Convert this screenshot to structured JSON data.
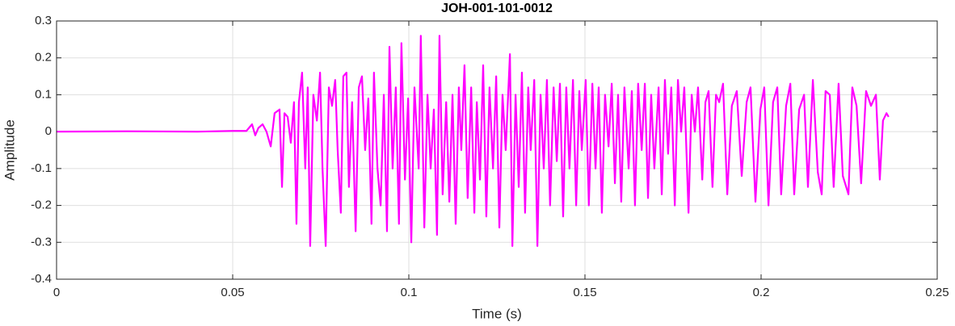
{
  "chart_data": {
    "type": "line",
    "title": "JOH-001-101-0012",
    "xlabel": "Time (s)",
    "ylabel": "Amplitude",
    "xlim": [
      0,
      0.25
    ],
    "ylim": [
      -0.4,
      0.3
    ],
    "xticks": [
      0,
      0.05,
      0.1,
      0.15,
      0.2,
      0.25
    ],
    "yticks": [
      -0.4,
      -0.3,
      -0.2,
      -0.1,
      0,
      0.1,
      0.2,
      0.3
    ],
    "grid": true,
    "series": [
      {
        "color": "#ff00ff",
        "x": [
          0,
          0.02,
          0.04,
          0.05,
          0.0539,
          0.0555,
          0.0564,
          0.0573,
          0.0585,
          0.0596,
          0.0608,
          0.0619,
          0.0633,
          0.064,
          0.0647,
          0.0656,
          0.0665,
          0.0674,
          0.0681,
          0.0688,
          0.0697,
          0.0706,
          0.0713,
          0.072,
          0.0729,
          0.0739,
          0.0748,
          0.0755,
          0.0764,
          0.0773,
          0.0782,
          0.0791,
          0.0798,
          0.0807,
          0.0814,
          0.0823,
          0.083,
          0.0839,
          0.0849,
          0.0858,
          0.0867,
          0.0876,
          0.0885,
          0.0894,
          0.0901,
          0.0911,
          0.092,
          0.0929,
          0.0938,
          0.0945,
          0.0954,
          0.0963,
          0.0972,
          0.0979,
          0.0989,
          0.0998,
          0.1007,
          0.1016,
          0.1028,
          0.1034,
          0.1044,
          0.1053,
          0.1062,
          0.1071,
          0.108,
          0.1087,
          0.1096,
          0.1106,
          0.1115,
          0.1124,
          0.1133,
          0.1142,
          0.1149,
          0.1158,
          0.1167,
          0.1177,
          0.1186,
          0.1193,
          0.1202,
          0.1211,
          0.122,
          0.1229,
          0.1239,
          0.1248,
          0.1257,
          0.1266,
          0.1275,
          0.1287,
          0.1294,
          0.1303,
          0.1312,
          0.1321,
          0.133,
          0.1339,
          0.1346,
          0.1356,
          0.1365,
          0.1374,
          0.1383,
          0.1392,
          0.1401,
          0.1411,
          0.142,
          0.1429,
          0.1438,
          0.1447,
          0.1456,
          0.1466,
          0.1475,
          0.1484,
          0.1491,
          0.1502,
          0.1511,
          0.1521,
          0.153,
          0.1539,
          0.1548,
          0.1557,
          0.1567,
          0.1576,
          0.1585,
          0.1594,
          0.1603,
          0.1612,
          0.1624,
          0.1633,
          0.1642,
          0.1651,
          0.1661,
          0.167,
          0.1679,
          0.1688,
          0.1697,
          0.1709,
          0.1718,
          0.1727,
          0.1736,
          0.1745,
          0.1755,
          0.1764,
          0.1773,
          0.1782,
          0.1794,
          0.1803,
          0.1812,
          0.1821,
          0.1833,
          0.1842,
          0.1851,
          0.1862,
          0.1872,
          0.1881,
          0.1892,
          0.1904,
          0.1917,
          0.1931,
          0.1945,
          0.1959,
          0.197,
          0.1984,
          0.1998,
          0.2009,
          0.2021,
          0.2034,
          0.2046,
          0.2057,
          0.2071,
          0.2083,
          0.2094,
          0.2108,
          0.2122,
          0.2133,
          0.2147,
          0.2161,
          0.2172,
          0.2183,
          0.2195,
          0.2206,
          0.222,
          0.2232,
          0.2248,
          0.2259,
          0.2271,
          0.2284,
          0.2298,
          0.2312,
          0.2326,
          0.2337,
          0.2346,
          0.2356,
          0.2362
        ],
        "values": [
          0,
          0.001,
          0,
          0.002,
          0.002,
          0.02,
          -0.01,
          0.01,
          0.02,
          0,
          -0.04,
          0.05,
          0.06,
          -0.15,
          0.05,
          0.04,
          -0.03,
          0.08,
          -0.25,
          0.08,
          0.16,
          -0.1,
          0.12,
          -0.31,
          0.1,
          0.03,
          0.16,
          -0.1,
          -0.31,
          0.12,
          0.07,
          0.14,
          -0.05,
          -0.22,
          0.15,
          0.16,
          -0.15,
          0.08,
          -0.27,
          0.12,
          0.15,
          -0.05,
          0.09,
          -0.25,
          0.16,
          -0.1,
          -0.2,
          0.1,
          -0.27,
          0.23,
          -0.1,
          0.12,
          -0.25,
          0.24,
          -0.13,
          0.09,
          -0.3,
          0.12,
          -0.1,
          0.26,
          -0.26,
          0.1,
          -0.1,
          0.06,
          -0.28,
          0.26,
          -0.17,
          0.08,
          -0.19,
          0.1,
          -0.25,
          0.12,
          -0.05,
          0.18,
          -0.18,
          0.12,
          -0.22,
          0.08,
          -0.13,
          0.18,
          -0.23,
          0.12,
          -0.1,
          0.15,
          -0.26,
          0.1,
          -0.05,
          0.21,
          -0.31,
          0.1,
          -0.15,
          0.16,
          -0.22,
          0.12,
          -0.05,
          0.14,
          -0.31,
          0.1,
          -0.1,
          0.14,
          -0.2,
          0.12,
          -0.08,
          0.13,
          -0.23,
          0.12,
          -0.1,
          0.14,
          -0.2,
          0.11,
          -0.05,
          0.14,
          -0.2,
          0.13,
          -0.1,
          0.12,
          -0.22,
          0.1,
          -0.04,
          0.13,
          -0.14,
          0.1,
          -0.19,
          0.12,
          -0.1,
          0.11,
          -0.2,
          0.13,
          -0.05,
          0.13,
          -0.18,
          0.1,
          -0.1,
          0.12,
          -0.17,
          0.14,
          -0.06,
          0.12,
          -0.2,
          0.14,
          0,
          0.12,
          -0.22,
          0.1,
          0,
          0.12,
          -0.13,
          0.08,
          0.11,
          -0.15,
          0.1,
          0.08,
          0.13,
          -0.17,
          0.07,
          0.11,
          -0.12,
          0.08,
          0.12,
          -0.19,
          0.06,
          0.12,
          -0.2,
          0.08,
          0.12,
          -0.17,
          0.07,
          0.13,
          -0.17,
          0.06,
          0.1,
          -0.15,
          0.14,
          -0.11,
          -0.17,
          0.11,
          0.1,
          -0.15,
          0.13,
          -0.12,
          -0.17,
          0.12,
          0.07,
          -0.14,
          0.11,
          0.07,
          0.1,
          -0.13,
          0.03,
          0.05,
          0.04
        ]
      }
    ]
  }
}
